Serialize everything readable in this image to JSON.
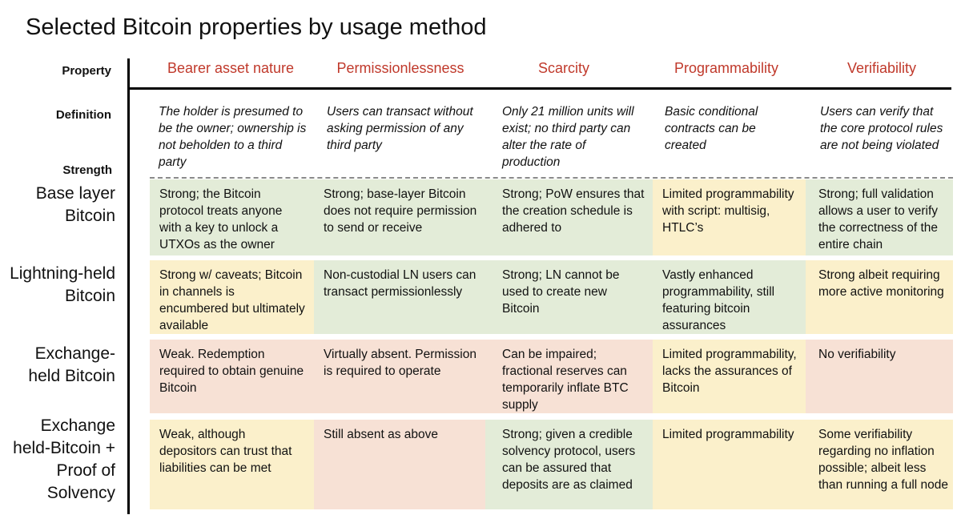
{
  "title": "Selected Bitcoin properties by usage method",
  "labels": {
    "property": "Property",
    "definition": "Definition",
    "strength": "Strength"
  },
  "columns": [
    {
      "header": "Bearer asset nature",
      "definition": "The holder is presumed to be the owner; ownership is not beholden to a third party"
    },
    {
      "header": "Permissionlessness",
      "definition": "Users can transact without asking permission of any third party"
    },
    {
      "header": "Scarcity",
      "definition": "Only 21 million units will exist; no third party can alter the rate of production"
    },
    {
      "header": "Programmability",
      "definition": "Basic conditional contracts can be created"
    },
    {
      "header": "Verifiability",
      "definition": "Users can verify that the core protocol rules are not being violated"
    }
  ],
  "rows": [
    {
      "label": "Base layer Bitcoin",
      "cells": [
        {
          "text": "Strong; the Bitcoin protocol treats anyone with a key to unlock a UTXOs as the owner",
          "color": "green"
        },
        {
          "text": "Strong; base-layer Bitcoin does not require permission to send or receive",
          "color": "green"
        },
        {
          "text": "Strong; PoW ensures that the creation schedule is adhered to",
          "color": "green"
        },
        {
          "text": "Limited programmability with script: multisig, HTLC’s",
          "color": "yellow"
        },
        {
          "text": "Strong; full validation allows a user to verify the correctness of the entire chain",
          "color": "green"
        }
      ]
    },
    {
      "label": "Lightning-held Bitcoin",
      "cells": [
        {
          "text": "Strong w/ caveats; Bitcoin in channels is encumbered but ultimately available",
          "color": "yellow"
        },
        {
          "text": "Non-custodial LN users can transact permissionlessly",
          "color": "green"
        },
        {
          "text": "Strong; LN cannot be used to create new Bitcoin",
          "color": "green"
        },
        {
          "text": "Vastly enhanced programmability, still featuring bitcoin assurances",
          "color": "green"
        },
        {
          "text": "Strong albeit requiring more active monitoring",
          "color": "yellow"
        }
      ]
    },
    {
      "label": "Exchange-held Bitcoin",
      "cells": [
        {
          "text": "Weak. Redemption required to obtain genuine Bitcoin",
          "color": "red"
        },
        {
          "text": "Virtually absent. Permission is required to operate",
          "color": "red"
        },
        {
          "text": "Can be impaired; fractional reserves can temporarily inflate BTC supply",
          "color": "red"
        },
        {
          "text": "Limited programmability, lacks the assurances of Bitcoin",
          "color": "yellow"
        },
        {
          "text": "No verifiability",
          "color": "red"
        }
      ]
    },
    {
      "label": "Exchange held-Bitcoin + Proof of Solvency",
      "cells": [
        {
          "text": "Weak, although depositors can trust that liabilities can be met",
          "color": "yellow"
        },
        {
          "text": "Still absent as above",
          "color": "red"
        },
        {
          "text": "Strong; given a credible solvency protocol, users can be assured that deposits are as claimed",
          "color": "green"
        },
        {
          "text": "Limited programmability",
          "color": "yellow"
        },
        {
          "text": "Some verifiability regarding no inflation possible; albeit less than running a full node",
          "color": "yellow"
        }
      ]
    }
  ]
}
